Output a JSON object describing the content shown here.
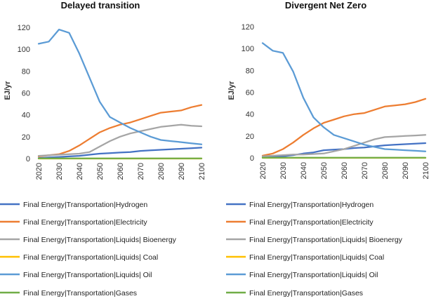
{
  "chart_data": [
    {
      "type": "line",
      "title": "Delayed transition",
      "ylabel": "EJ/yr",
      "xlabel": "",
      "ylim": [
        0,
        120
      ],
      "yticks": [
        0,
        20,
        40,
        60,
        80,
        100,
        120
      ],
      "x": [
        2020,
        2025,
        2030,
        2035,
        2040,
        2045,
        2050,
        2055,
        2060,
        2065,
        2070,
        2075,
        2080,
        2085,
        2090,
        2095,
        2100
      ],
      "xtick_labels": [
        "2020",
        "2030",
        "2040",
        "2050",
        "2060",
        "2070",
        "2080",
        "2090",
        "2100"
      ],
      "series": [
        {
          "name": "Final Energy|Transportation|Hydrogen",
          "color": "#4472C4",
          "values": [
            0.5,
            1,
            1.5,
            2,
            2.5,
            3.5,
            4.5,
            5,
            5.5,
            6,
            7,
            7.5,
            8,
            8.5,
            9,
            9.5,
            10
          ]
        },
        {
          "name": "Final Energy|Transportation|Electricity",
          "color": "#ED7D31",
          "values": [
            2,
            3,
            4,
            7,
            12,
            18,
            24,
            28,
            31,
            33,
            36,
            39,
            42,
            43,
            44,
            47,
            49
          ]
        },
        {
          "name": "Final Energy|Transportation|Liquids| Bioenergy",
          "color": "#A5A5A5",
          "values": [
            2.5,
            3,
            3.5,
            4,
            4.5,
            6,
            11,
            16,
            20,
            23,
            25,
            27,
            29,
            30,
            31,
            30,
            29.5
          ]
        },
        {
          "name": "Final Energy|Transportation|Liquids| Coal",
          "color": "#FFC000",
          "values": [
            0,
            0,
            0,
            0,
            0,
            0,
            0,
            0,
            0,
            0,
            0,
            0,
            0,
            0,
            0,
            0,
            0
          ]
        },
        {
          "name": "Final Energy|Transportation|Liquids| Oil",
          "color": "#5B9BD5",
          "values": [
            105,
            107,
            118,
            115,
            96,
            74,
            52,
            38,
            33,
            28,
            24,
            20,
            17,
            16,
            15,
            14,
            13
          ]
        },
        {
          "name": "Final Energy|Transportation|Gases",
          "color": "#70AD47",
          "values": [
            0.2,
            0.2,
            0.2,
            0.2,
            0.2,
            0.2,
            0.2,
            0.2,
            0.2,
            0.2,
            0.2,
            0.2,
            0.2,
            0.2,
            0.2,
            0.2,
            0.2
          ]
        }
      ],
      "grid": false,
      "legend": "bottom"
    },
    {
      "type": "line",
      "title": "Divergent Net Zero",
      "ylabel": "EJ/yr",
      "xlabel": "",
      "ylim": [
        0,
        120
      ],
      "yticks": [
        0,
        20,
        40,
        60,
        80,
        100,
        120
      ],
      "x": [
        2020,
        2025,
        2030,
        2035,
        2040,
        2045,
        2050,
        2055,
        2060,
        2065,
        2070,
        2075,
        2080,
        2085,
        2090,
        2095,
        2100
      ],
      "xtick_labels": [
        "2020",
        "2030",
        "2040",
        "2050",
        "2060",
        "2070",
        "2080",
        "2090",
        "2100"
      ],
      "series": [
        {
          "name": "Final Energy|Transportation|Hydrogen",
          "color": "#4472C4",
          "values": [
            0.5,
            1,
            1.5,
            2.5,
            4,
            5,
            7,
            7.5,
            8,
            9,
            9.5,
            10.5,
            11.5,
            12,
            12.5,
            13,
            13.5
          ]
        },
        {
          "name": "Final Energy|Transportation|Electricity",
          "color": "#ED7D31",
          "values": [
            2,
            4,
            8,
            14,
            21,
            27,
            32,
            35,
            38,
            40,
            41,
            44,
            47,
            48,
            49,
            51,
            54
          ]
        },
        {
          "name": "Final Energy|Transportation|Liquids| Bioenergy",
          "color": "#A5A5A5",
          "values": [
            1.5,
            2,
            2.5,
            3,
            3,
            3.5,
            4,
            6,
            8,
            11,
            14,
            17,
            19,
            19.5,
            20,
            20.5,
            21
          ]
        },
        {
          "name": "Final Energy|Transportation|Liquids| Coal",
          "color": "#FFC000",
          "values": [
            0,
            0,
            0,
            0,
            0,
            0,
            0,
            0,
            0,
            0,
            0,
            0,
            0,
            0,
            0,
            0,
            0
          ]
        },
        {
          "name": "Final Energy|Transportation|Liquids| Oil",
          "color": "#5B9BD5",
          "values": [
            105,
            98,
            96,
            79,
            55,
            37,
            28,
            21,
            18,
            15,
            12,
            10,
            8,
            7.5,
            7,
            6.5,
            6
          ]
        },
        {
          "name": "Final Energy|Transportation|Gases",
          "color": "#70AD47",
          "values": [
            0.2,
            0.2,
            0.2,
            0.2,
            0.2,
            0.2,
            0.2,
            0.2,
            0.2,
            0.2,
            0.2,
            0.2,
            0.2,
            0.2,
            0.2,
            0.2,
            0.2
          ]
        }
      ],
      "grid": false,
      "legend": "bottom"
    }
  ]
}
